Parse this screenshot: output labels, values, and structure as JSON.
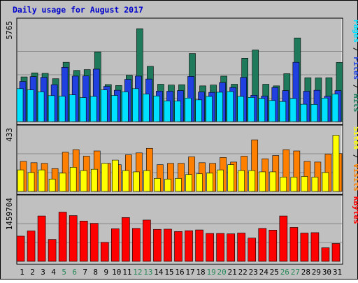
{
  "chart_data": [
    {
      "type": "bar",
      "title": "Daily usage for August 2017",
      "panel": "pages-files-hits",
      "ylabel_top": "5765",
      "legend": "Pages / Files / Hits",
      "categories": [
        "1",
        "2",
        "3",
        "4",
        "5",
        "6",
        "7",
        "8",
        "9",
        "10",
        "11",
        "12",
        "13",
        "14",
        "15",
        "16",
        "17",
        "18",
        "19",
        "20",
        "21",
        "22",
        "23",
        "24",
        "25",
        "26",
        "27",
        "28",
        "29",
        "30",
        "31"
      ],
      "weekend_days": [
        "5",
        "6",
        "12",
        "13",
        "19",
        "20",
        "26",
        "27"
      ],
      "ylim": [
        0,
        5765
      ],
      "series": [
        {
          "name": "Hits",
          "color": "#1e7a5a",
          "values": [
            2750,
            3000,
            2970,
            2640,
            3650,
            3150,
            3200,
            4290,
            2280,
            2220,
            2850,
            5720,
            3400,
            2300,
            2250,
            2270,
            4190,
            2200,
            2250,
            2800,
            2300,
            3900,
            4410,
            2300,
            2200,
            2950,
            5150,
            2700,
            2690,
            2700,
            3640
          ]
        },
        {
          "name": "Files",
          "color": "#2040e0",
          "values": [
            2470,
            2770,
            2720,
            2270,
            3340,
            2800,
            2810,
            3230,
            2170,
            1930,
            2600,
            2800,
            2620,
            1880,
            1870,
            1910,
            2780,
            1820,
            1800,
            2400,
            2100,
            2720,
            1620,
            1570,
            2100,
            1910,
            3650,
            1870,
            1930,
            1560,
            1910
          ]
        },
        {
          "name": "Pages",
          "color": "#00e0ff",
          "values": [
            2030,
            1950,
            1830,
            1600,
            1560,
            1650,
            1480,
            1550,
            1950,
            1610,
            1830,
            2030,
            1690,
            1580,
            1270,
            1260,
            1450,
            1340,
            1550,
            1810,
            1850,
            1550,
            1490,
            1420,
            1300,
            1240,
            1420,
            1070,
            1060,
            1450,
            1690
          ]
        }
      ]
    },
    {
      "type": "bar",
      "panel": "sites-visits",
      "ylabel_top": "433",
      "legend": "Sites / Visits",
      "categories": [
        "1",
        "2",
        "3",
        "4",
        "5",
        "6",
        "7",
        "8",
        "9",
        "10",
        "11",
        "12",
        "13",
        "14",
        "15",
        "16",
        "17",
        "18",
        "19",
        "20",
        "21",
        "22",
        "23",
        "24",
        "25",
        "26",
        "27",
        "28",
        "29",
        "30",
        "31"
      ],
      "ylim": [
        0,
        433
      ],
      "series": [
        {
          "name": "Visits",
          "color": "#ff8000",
          "values": [
            230,
            220,
            215,
            175,
            300,
            320,
            270,
            310,
            215,
            205,
            280,
            295,
            330,
            205,
            215,
            215,
            265,
            220,
            215,
            260,
            225,
            270,
            395,
            250,
            275,
            320,
            310,
            230,
            225,
            285,
            290
          ]
        },
        {
          "name": "Sites",
          "color": "#ffff00",
          "values": [
            165,
            145,
            165,
            95,
            140,
            185,
            160,
            170,
            215,
            240,
            160,
            150,
            160,
            100,
            95,
            100,
            130,
            135,
            140,
            165,
            205,
            160,
            160,
            150,
            150,
            110,
            110,
            115,
            110,
            145,
            430
          ]
        }
      ]
    },
    {
      "type": "bar",
      "panel": "kbytes",
      "ylabel_top": "1459704",
      "legend": "KBytes",
      "categories": [
        "1",
        "2",
        "3",
        "4",
        "5",
        "6",
        "7",
        "8",
        "9",
        "10",
        "11",
        "12",
        "13",
        "14",
        "15",
        "16",
        "17",
        "18",
        "19",
        "20",
        "21",
        "22",
        "23",
        "24",
        "25",
        "26",
        "27",
        "28",
        "29",
        "30",
        "31"
      ],
      "ylim": [
        0,
        1459704
      ],
      "series": [
        {
          "name": "KBytes",
          "color": "#ff0000",
          "values": [
            650000,
            785000,
            1170000,
            565000,
            1270000,
            1180000,
            1040000,
            980000,
            490000,
            840000,
            1130000,
            850000,
            1065000,
            825000,
            830000,
            770000,
            790000,
            810000,
            720000,
            720000,
            710000,
            730000,
            600000,
            850000,
            805000,
            1170000,
            875000,
            730000,
            740000,
            350000,
            460000
          ]
        }
      ]
    }
  ]
}
